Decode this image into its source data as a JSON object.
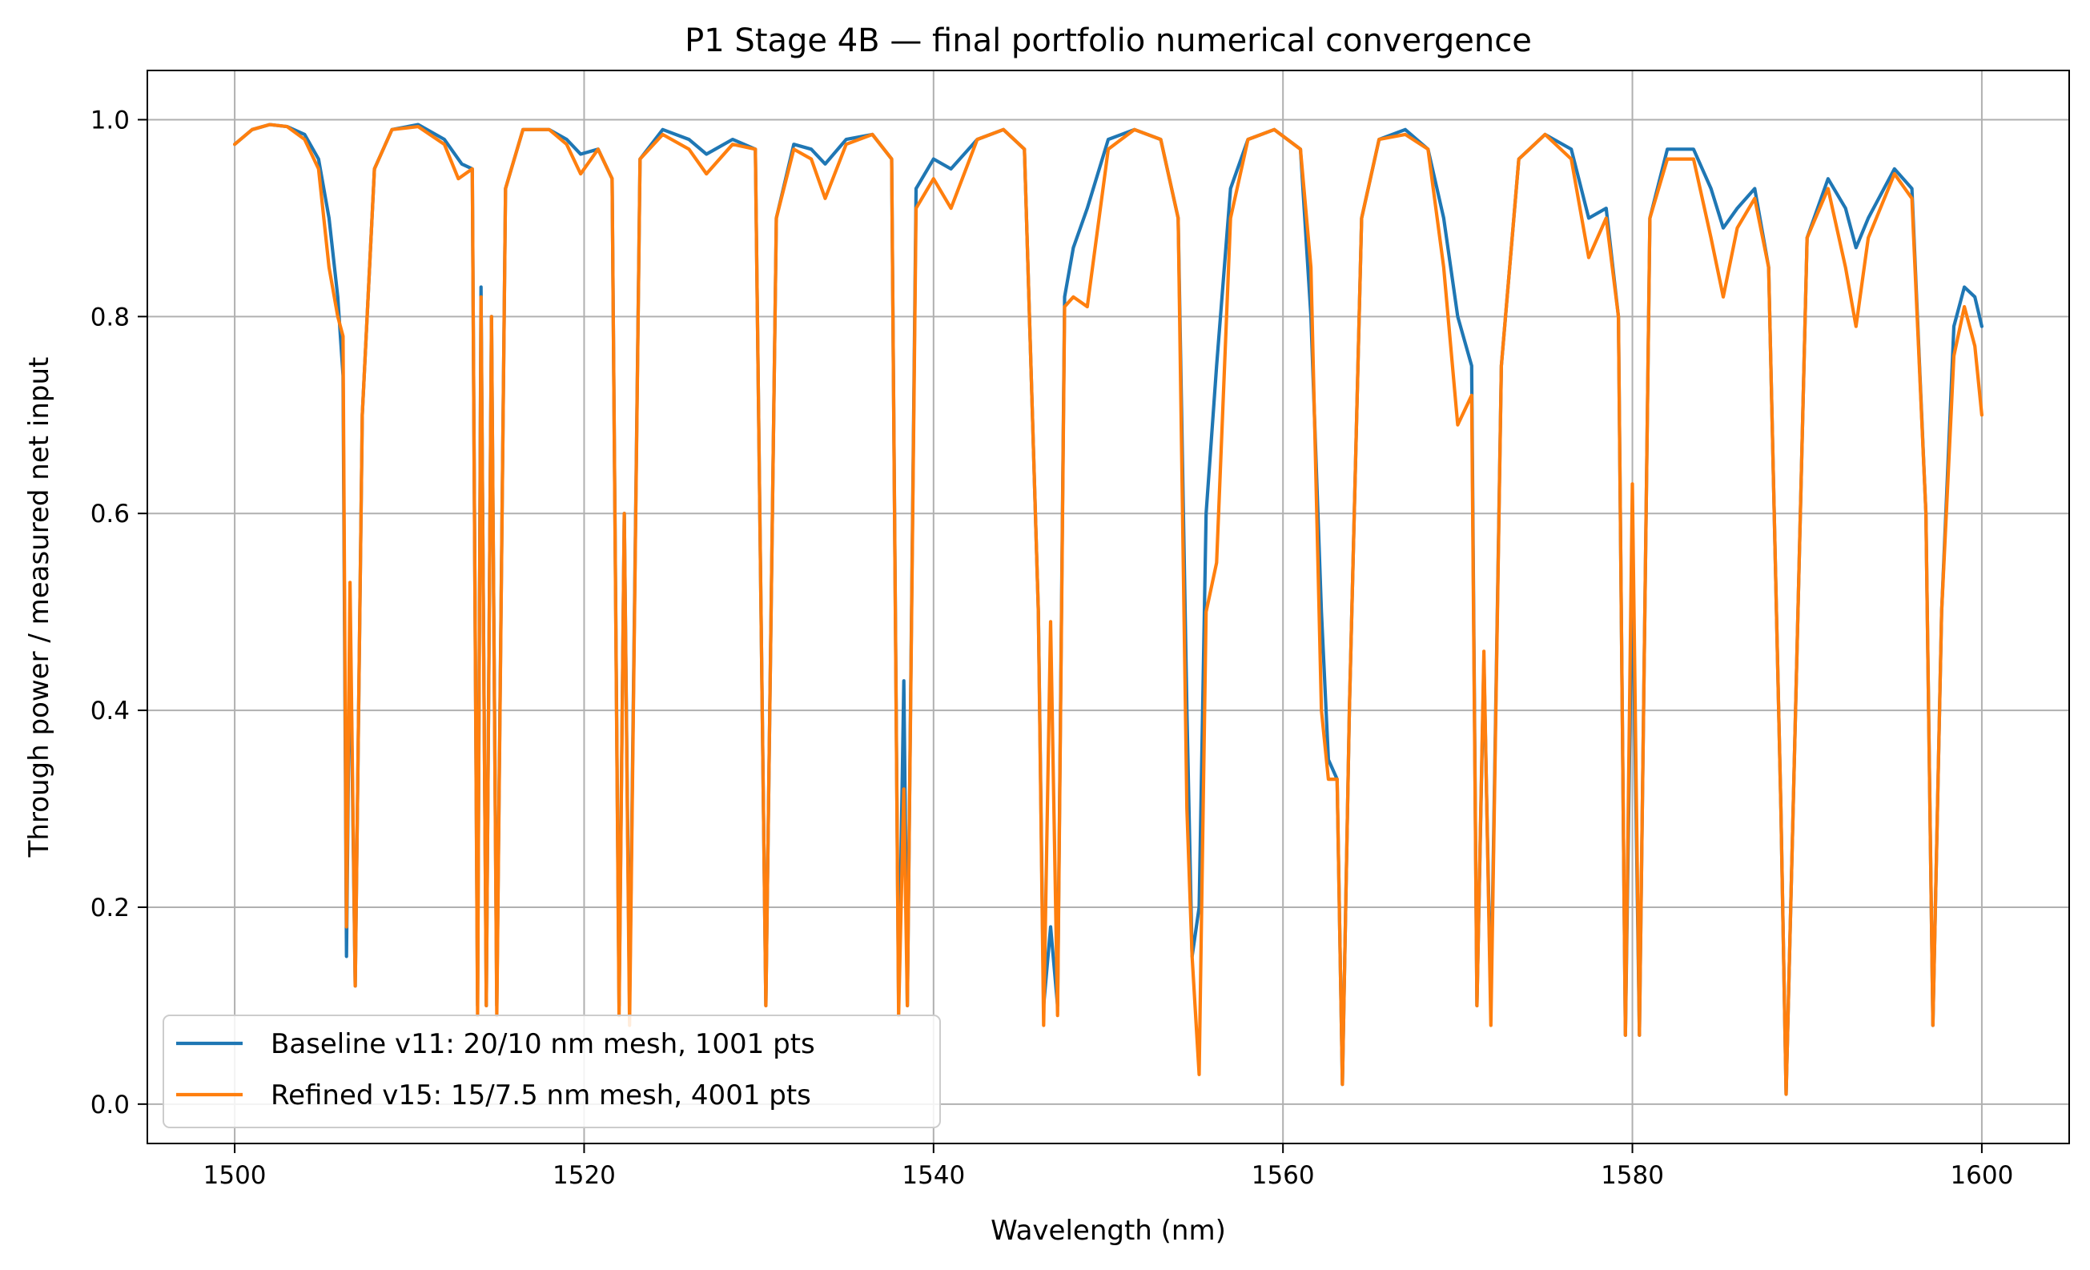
{
  "chart_data": {
    "type": "line",
    "title": "P1 Stage 4B — final portfolio numerical convergence",
    "xlabel": "Wavelength (nm)",
    "ylabel": "Through power / measured net input",
    "xlim": [
      1495,
      1605
    ],
    "ylim": [
      -0.04,
      1.05
    ],
    "xticks": [
      1500,
      1520,
      1540,
      1560,
      1580,
      1600
    ],
    "xtick_labels": [
      "1500",
      "1520",
      "1540",
      "1560",
      "1580",
      "1600"
    ],
    "yticks": [
      0.0,
      0.2,
      0.4,
      0.6,
      0.8,
      1.0
    ],
    "ytick_labels": [
      "0.0",
      "0.2",
      "0.4",
      "0.6",
      "0.8",
      "1.0"
    ],
    "grid": true,
    "legend_position": "lower-left",
    "series": [
      {
        "name": "Baseline v11: 20/10 nm mesh, 1001 pts",
        "color": "#1f77b4",
        "points": [
          [
            1500.0,
            0.975
          ],
          [
            1501.0,
            0.99
          ],
          [
            1502.0,
            0.995
          ],
          [
            1503.0,
            0.993
          ],
          [
            1504.0,
            0.985
          ],
          [
            1504.8,
            0.96
          ],
          [
            1505.4,
            0.9
          ],
          [
            1505.9,
            0.82
          ],
          [
            1506.2,
            0.74
          ],
          [
            1506.4,
            0.15
          ],
          [
            1506.6,
            0.5
          ],
          [
            1506.9,
            0.12
          ],
          [
            1507.3,
            0.7
          ],
          [
            1508.0,
            0.95
          ],
          [
            1509.0,
            0.99
          ],
          [
            1510.5,
            0.995
          ],
          [
            1512.0,
            0.98
          ],
          [
            1513.0,
            0.955
          ],
          [
            1513.6,
            0.95
          ],
          [
            1513.9,
            0.1
          ],
          [
            1514.1,
            0.83
          ],
          [
            1514.4,
            0.1
          ],
          [
            1514.7,
            0.8
          ],
          [
            1515.0,
            0.1
          ],
          [
            1515.5,
            0.93
          ],
          [
            1516.5,
            0.99
          ],
          [
            1518.0,
            0.99
          ],
          [
            1519.0,
            0.98
          ],
          [
            1519.8,
            0.965
          ],
          [
            1520.8,
            0.97
          ],
          [
            1521.6,
            0.94
          ],
          [
            1522.0,
            0.1
          ],
          [
            1522.3,
            0.6
          ],
          [
            1522.6,
            0.1
          ],
          [
            1523.2,
            0.96
          ],
          [
            1524.5,
            0.99
          ],
          [
            1526.0,
            0.98
          ],
          [
            1527.0,
            0.965
          ],
          [
            1528.5,
            0.98
          ],
          [
            1529.8,
            0.97
          ],
          [
            1530.4,
            0.1
          ],
          [
            1531.0,
            0.9
          ],
          [
            1532.0,
            0.975
          ],
          [
            1533.0,
            0.97
          ],
          [
            1533.8,
            0.955
          ],
          [
            1535.0,
            0.98
          ],
          [
            1536.5,
            0.985
          ],
          [
            1537.6,
            0.96
          ],
          [
            1538.0,
            0.1
          ],
          [
            1538.3,
            0.43
          ],
          [
            1538.5,
            0.1
          ],
          [
            1539.0,
            0.93
          ],
          [
            1540.0,
            0.96
          ],
          [
            1541.0,
            0.95
          ],
          [
            1542.5,
            0.98
          ],
          [
            1544.0,
            0.99
          ],
          [
            1545.2,
            0.97
          ],
          [
            1546.0,
            0.5
          ],
          [
            1546.3,
            0.1
          ],
          [
            1546.7,
            0.18
          ],
          [
            1547.1,
            0.1
          ],
          [
            1547.5,
            0.82
          ],
          [
            1548.0,
            0.87
          ],
          [
            1548.8,
            0.91
          ],
          [
            1550.0,
            0.98
          ],
          [
            1551.5,
            0.99
          ],
          [
            1553.0,
            0.98
          ],
          [
            1554.0,
            0.9
          ],
          [
            1554.5,
            0.4
          ],
          [
            1554.8,
            0.15
          ],
          [
            1555.2,
            0.2
          ],
          [
            1555.6,
            0.6
          ],
          [
            1556.2,
            0.75
          ],
          [
            1557.0,
            0.93
          ],
          [
            1558.0,
            0.98
          ],
          [
            1559.5,
            0.99
          ],
          [
            1561.0,
            0.97
          ],
          [
            1561.6,
            0.8
          ],
          [
            1562.2,
            0.5
          ],
          [
            1562.6,
            0.35
          ],
          [
            1563.1,
            0.33
          ],
          [
            1563.4,
            0.02
          ],
          [
            1563.8,
            0.4
          ],
          [
            1564.5,
            0.9
          ],
          [
            1565.5,
            0.98
          ],
          [
            1567.0,
            0.99
          ],
          [
            1568.3,
            0.97
          ],
          [
            1569.2,
            0.9
          ],
          [
            1570.0,
            0.8
          ],
          [
            1570.8,
            0.75
          ],
          [
            1571.1,
            0.1
          ],
          [
            1571.5,
            0.45
          ],
          [
            1571.9,
            0.1
          ],
          [
            1572.5,
            0.75
          ],
          [
            1573.5,
            0.96
          ],
          [
            1575.0,
            0.985
          ],
          [
            1576.5,
            0.97
          ],
          [
            1577.5,
            0.9
          ],
          [
            1578.5,
            0.91
          ],
          [
            1579.2,
            0.8
          ],
          [
            1579.6,
            0.07
          ],
          [
            1580.0,
            0.55
          ],
          [
            1580.4,
            0.07
          ],
          [
            1581.0,
            0.9
          ],
          [
            1582.0,
            0.97
          ],
          [
            1583.5,
            0.97
          ],
          [
            1584.5,
            0.93
          ],
          [
            1585.2,
            0.89
          ],
          [
            1586.0,
            0.91
          ],
          [
            1587.0,
            0.93
          ],
          [
            1587.8,
            0.85
          ],
          [
            1588.5,
            0.3
          ],
          [
            1588.8,
            0.01
          ],
          [
            1589.2,
            0.3
          ],
          [
            1590.0,
            0.88
          ],
          [
            1591.2,
            0.94
          ],
          [
            1592.2,
            0.91
          ],
          [
            1592.8,
            0.87
          ],
          [
            1593.5,
            0.9
          ],
          [
            1595.0,
            0.95
          ],
          [
            1596.0,
            0.93
          ],
          [
            1596.8,
            0.6
          ],
          [
            1597.2,
            0.08
          ],
          [
            1597.7,
            0.5
          ],
          [
            1598.4,
            0.79
          ],
          [
            1599.0,
            0.83
          ],
          [
            1599.6,
            0.82
          ],
          [
            1600.0,
            0.79
          ]
        ]
      },
      {
        "name": "Refined v15: 15/7.5 nm mesh, 4001 pts",
        "color": "#ff7f0e",
        "points": [
          [
            1500.0,
            0.975
          ],
          [
            1501.0,
            0.99
          ],
          [
            1502.0,
            0.995
          ],
          [
            1503.0,
            0.993
          ],
          [
            1504.0,
            0.98
          ],
          [
            1504.8,
            0.95
          ],
          [
            1505.4,
            0.85
          ],
          [
            1505.9,
            0.8
          ],
          [
            1506.2,
            0.78
          ],
          [
            1506.4,
            0.18
          ],
          [
            1506.6,
            0.53
          ],
          [
            1506.9,
            0.12
          ],
          [
            1507.3,
            0.7
          ],
          [
            1508.0,
            0.95
          ],
          [
            1509.0,
            0.99
          ],
          [
            1510.5,
            0.993
          ],
          [
            1512.0,
            0.975
          ],
          [
            1512.8,
            0.94
          ],
          [
            1513.6,
            0.95
          ],
          [
            1513.9,
            0.09
          ],
          [
            1514.1,
            0.82
          ],
          [
            1514.4,
            0.1
          ],
          [
            1514.7,
            0.8
          ],
          [
            1515.0,
            0.09
          ],
          [
            1515.5,
            0.93
          ],
          [
            1516.5,
            0.99
          ],
          [
            1518.0,
            0.99
          ],
          [
            1519.0,
            0.975
          ],
          [
            1519.8,
            0.945
          ],
          [
            1520.8,
            0.97
          ],
          [
            1521.6,
            0.94
          ],
          [
            1522.0,
            0.09
          ],
          [
            1522.3,
            0.6
          ],
          [
            1522.6,
            0.08
          ],
          [
            1523.2,
            0.96
          ],
          [
            1524.5,
            0.985
          ],
          [
            1526.0,
            0.97
          ],
          [
            1527.0,
            0.945
          ],
          [
            1528.5,
            0.975
          ],
          [
            1529.8,
            0.97
          ],
          [
            1530.4,
            0.1
          ],
          [
            1531.0,
            0.9
          ],
          [
            1532.0,
            0.97
          ],
          [
            1533.0,
            0.96
          ],
          [
            1533.8,
            0.92
          ],
          [
            1535.0,
            0.975
          ],
          [
            1536.5,
            0.985
          ],
          [
            1537.6,
            0.96
          ],
          [
            1538.0,
            0.09
          ],
          [
            1538.3,
            0.32
          ],
          [
            1538.5,
            0.1
          ],
          [
            1539.0,
            0.91
          ],
          [
            1540.0,
            0.94
          ],
          [
            1541.0,
            0.91
          ],
          [
            1542.5,
            0.98
          ],
          [
            1544.0,
            0.99
          ],
          [
            1545.2,
            0.97
          ],
          [
            1546.0,
            0.5
          ],
          [
            1546.3,
            0.08
          ],
          [
            1546.7,
            0.49
          ],
          [
            1547.1,
            0.09
          ],
          [
            1547.5,
            0.81
          ],
          [
            1548.0,
            0.82
          ],
          [
            1548.8,
            0.81
          ],
          [
            1550.0,
            0.97
          ],
          [
            1551.5,
            0.99
          ],
          [
            1553.0,
            0.98
          ],
          [
            1554.0,
            0.9
          ],
          [
            1554.5,
            0.3
          ],
          [
            1554.8,
            0.15
          ],
          [
            1555.2,
            0.03
          ],
          [
            1555.6,
            0.5
          ],
          [
            1556.2,
            0.55
          ],
          [
            1557.0,
            0.9
          ],
          [
            1558.0,
            0.98
          ],
          [
            1559.5,
            0.99
          ],
          [
            1561.0,
            0.97
          ],
          [
            1561.6,
            0.85
          ],
          [
            1562.2,
            0.4
          ],
          [
            1562.6,
            0.33
          ],
          [
            1563.1,
            0.33
          ],
          [
            1563.4,
            0.02
          ],
          [
            1563.8,
            0.4
          ],
          [
            1564.5,
            0.9
          ],
          [
            1565.5,
            0.98
          ],
          [
            1567.0,
            0.985
          ],
          [
            1568.3,
            0.97
          ],
          [
            1569.2,
            0.85
          ],
          [
            1570.0,
            0.69
          ],
          [
            1570.8,
            0.72
          ],
          [
            1571.1,
            0.1
          ],
          [
            1571.5,
            0.46
          ],
          [
            1571.9,
            0.08
          ],
          [
            1572.5,
            0.75
          ],
          [
            1573.5,
            0.96
          ],
          [
            1575.0,
            0.985
          ],
          [
            1576.5,
            0.96
          ],
          [
            1577.5,
            0.86
          ],
          [
            1578.5,
            0.9
          ],
          [
            1579.2,
            0.8
          ],
          [
            1579.6,
            0.07
          ],
          [
            1580.0,
            0.63
          ],
          [
            1580.4,
            0.07
          ],
          [
            1581.0,
            0.9
          ],
          [
            1582.0,
            0.96
          ],
          [
            1583.5,
            0.96
          ],
          [
            1584.5,
            0.88
          ],
          [
            1585.2,
            0.82
          ],
          [
            1586.0,
            0.89
          ],
          [
            1587.0,
            0.92
          ],
          [
            1587.8,
            0.85
          ],
          [
            1588.5,
            0.3
          ],
          [
            1588.8,
            0.01
          ],
          [
            1589.2,
            0.3
          ],
          [
            1590.0,
            0.88
          ],
          [
            1591.2,
            0.93
          ],
          [
            1592.2,
            0.85
          ],
          [
            1592.8,
            0.79
          ],
          [
            1593.5,
            0.88
          ],
          [
            1595.0,
            0.945
          ],
          [
            1596.0,
            0.92
          ],
          [
            1596.8,
            0.6
          ],
          [
            1597.2,
            0.08
          ],
          [
            1597.7,
            0.5
          ],
          [
            1598.4,
            0.76
          ],
          [
            1599.0,
            0.81
          ],
          [
            1599.6,
            0.77
          ],
          [
            1600.0,
            0.7
          ]
        ]
      }
    ]
  }
}
